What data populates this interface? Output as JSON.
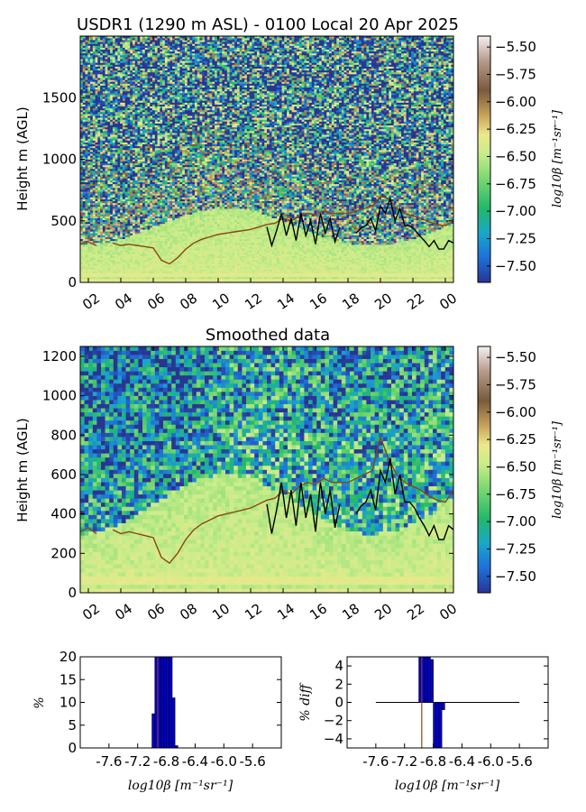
{
  "chart_data": [
    {
      "type": "heatmap",
      "title": "USDR1 (1290 m ASL) - 0100 Local 20 Apr 2025",
      "ylabel": "Height m (AGL)",
      "ylim": [
        0,
        2000
      ],
      "y_ticks": [
        "0",
        "500",
        "1000",
        "1500"
      ],
      "y_tick_values": [
        0,
        500,
        1000,
        1500
      ],
      "x_ticks": [
        "02",
        "04",
        "06",
        "08",
        "10",
        "12",
        "14",
        "16",
        "18",
        "20",
        "22",
        "00"
      ],
      "x_tick_values": [
        2,
        4,
        6,
        8,
        10,
        12,
        14,
        16,
        18,
        20,
        22,
        24
      ],
      "xlim": [
        1.5,
        24.5
      ],
      "colorbar": {
        "label": "log10β [m⁻¹sr⁻¹]",
        "ticks": [
          "−5.50",
          "−5.75",
          "−6.00",
          "−6.25",
          "−6.50",
          "−6.75",
          "−7.00",
          "−7.25",
          "−7.50"
        ],
        "tick_values": [
          -5.5,
          -5.75,
          -6.0,
          -6.25,
          -6.5,
          -6.75,
          -7.0,
          -7.25,
          -7.5
        ],
        "range": [
          -7.65,
          -5.4
        ]
      },
      "lines": [
        {
          "color": "#8b4513",
          "x": [
            1.5,
            2,
            2.5,
            3,
            3.5,
            4,
            4.5,
            5,
            5.5,
            6,
            6.5,
            7,
            7.5,
            8,
            8.5,
            9,
            9.5,
            10,
            10.5,
            11,
            11.5,
            12,
            12.5,
            13,
            13.5,
            14,
            14.5,
            15,
            15.5,
            16,
            16.5,
            17,
            17.5,
            18,
            18.5,
            19,
            19.5,
            20,
            20.5,
            21,
            21.5,
            22,
            22.5,
            23,
            23.5,
            24,
            24.5
          ],
          "y": [
            310,
            330,
            300,
            null,
            320,
            300,
            310,
            300,
            290,
            280,
            180,
            150,
            200,
            270,
            320,
            350,
            370,
            390,
            400,
            410,
            420,
            430,
            450,
            470,
            480,
            520,
            500,
            540,
            560,
            550,
            580,
            560,
            560,
            560,
            580,
            600,
            620,
            700,
            680,
            600,
            560,
            540,
            520,
            490,
            470,
            460,
            500
          ]
        },
        {
          "color": "#000000",
          "x": [
            13,
            13.3,
            13.6,
            13.9,
            14.2,
            14.5,
            14.8,
            15.1,
            15.4,
            15.7,
            16,
            16.3,
            16.6,
            16.9,
            17.2,
            17.5,
            null,
            18.5,
            18.8,
            19.1,
            19.4,
            19.7,
            20,
            20.3,
            20.6,
            20.9,
            21.2,
            21.5,
            21.8,
            22.1,
            22.4,
            22.7,
            23,
            23.3,
            23.6,
            23.9,
            24.2,
            24.5
          ],
          "y": [
            450,
            300,
            420,
            560,
            380,
            520,
            340,
            560,
            380,
            500,
            310,
            560,
            400,
            520,
            330,
            450,
            null,
            400,
            440,
            460,
            520,
            420,
            620,
            560,
            680,
            500,
            600,
            460,
            460,
            430,
            380,
            340,
            290,
            340,
            270,
            270,
            340,
            320
          ]
        }
      ]
    },
    {
      "type": "heatmap",
      "title": "Smoothed data",
      "ylabel": "Height m (AGL)",
      "ylim": [
        0,
        1250
      ],
      "y_ticks": [
        "0",
        "200",
        "400",
        "600",
        "800",
        "1000",
        "1200"
      ],
      "y_tick_values": [
        0,
        200,
        400,
        600,
        800,
        1000,
        1200
      ],
      "x_ticks": [
        "02",
        "04",
        "06",
        "08",
        "10",
        "12",
        "14",
        "16",
        "18",
        "20",
        "22",
        "00"
      ],
      "x_tick_values": [
        2,
        4,
        6,
        8,
        10,
        12,
        14,
        16,
        18,
        20,
        22,
        24
      ],
      "xlim": [
        1.5,
        24.5
      ],
      "colorbar": {
        "label": "log10β [m⁻¹sr⁻¹]",
        "ticks": [
          "−5.50",
          "−5.75",
          "−6.00",
          "−6.25",
          "−6.50",
          "−6.75",
          "−7.00",
          "−7.25",
          "−7.50"
        ],
        "tick_values": [
          -5.5,
          -5.75,
          -6.0,
          -6.25,
          -6.5,
          -6.75,
          -7.0,
          -7.25,
          -7.5
        ],
        "range": [
          -7.65,
          -5.4
        ]
      },
      "lines": [
        {
          "color": "#8b4513",
          "x": [
            1.5,
            2,
            2.5,
            3,
            3.5,
            4,
            4.5,
            5,
            5.5,
            6,
            6.5,
            7,
            7.5,
            8,
            8.5,
            9,
            9.5,
            10,
            10.5,
            11,
            11.5,
            12,
            12.5,
            13,
            13.5,
            14,
            14.5,
            15,
            15.5,
            16,
            16.5,
            17,
            17.5,
            18,
            18.5,
            19,
            19.5,
            20,
            20.5,
            21,
            21.5,
            22,
            22.5,
            23,
            23.5,
            24,
            24.5
          ],
          "y": [
            310,
            330,
            300,
            null,
            320,
            300,
            310,
            300,
            290,
            280,
            180,
            150,
            200,
            270,
            320,
            350,
            370,
            390,
            400,
            410,
            420,
            430,
            450,
            470,
            480,
            520,
            500,
            540,
            560,
            550,
            580,
            560,
            560,
            560,
            580,
            600,
            620,
            790,
            680,
            600,
            560,
            540,
            520,
            490,
            470,
            460,
            520
          ]
        },
        {
          "color": "#000000",
          "x": [
            13,
            13.3,
            13.6,
            13.9,
            14.2,
            14.5,
            14.8,
            15.1,
            15.4,
            15.7,
            16,
            16.3,
            16.6,
            16.9,
            17.2,
            17.5,
            null,
            18.5,
            18.8,
            19.1,
            19.4,
            19.7,
            20,
            20.3,
            20.6,
            20.9,
            21.2,
            21.5,
            21.8,
            22.1,
            22.4,
            22.7,
            23,
            23.3,
            23.6,
            23.9,
            24.2,
            24.5
          ],
          "y": [
            450,
            300,
            420,
            560,
            380,
            520,
            340,
            560,
            380,
            500,
            310,
            560,
            400,
            520,
            330,
            450,
            null,
            400,
            440,
            460,
            520,
            420,
            620,
            560,
            680,
            500,
            600,
            460,
            460,
            430,
            380,
            340,
            290,
            340,
            270,
            270,
            340,
            320
          ]
        }
      ]
    },
    {
      "type": "bar",
      "ylabel": "%",
      "xlabel": "log10β [m⁻¹sr⁻¹]",
      "ylim": [
        0,
        20
      ],
      "xlim": [
        -8.0,
        -5.2
      ],
      "y_ticks": [
        "0",
        "5",
        "10",
        "15",
        "20"
      ],
      "y_tick_values": [
        0,
        5,
        10,
        15,
        20
      ],
      "x_ticks": [
        "-7.6",
        "-7.2",
        "-6.8",
        "-6.4",
        "-6.0",
        "-5.6"
      ],
      "x_tick_values": [
        -7.6,
        -7.2,
        -6.8,
        -6.4,
        -6.0,
        -5.6
      ],
      "bin_width": 0.04,
      "x": [
        -7.0,
        -6.96,
        -6.92,
        -6.88,
        -6.84,
        -6.8,
        -6.76,
        -6.72,
        -6.68
      ],
      "values": [
        7.5,
        20,
        20,
        20,
        20,
        20,
        20,
        11,
        0.5
      ],
      "color": "#0000cd",
      "marker_x": -6.92,
      "marker_color": "#8b4513"
    },
    {
      "type": "bar",
      "ylabel": "% diff",
      "xlabel": "log10β [m⁻¹sr⁻¹]",
      "ylim": [
        -5,
        5
      ],
      "xlim": [
        -8.0,
        -5.2
      ],
      "y_ticks": [
        "−4",
        "−2",
        "0",
        "2",
        "4"
      ],
      "y_tick_values": [
        -4,
        -2,
        0,
        2,
        4
      ],
      "x_ticks": [
        "-7.6",
        "-7.2",
        "-6.8",
        "-6.4",
        "-6.0",
        "-5.6"
      ],
      "x_tick_values": [
        -7.6,
        -7.2,
        -6.8,
        -6.4,
        -6.0,
        -5.6
      ],
      "bin_width": 0.04,
      "x": [
        -7.04,
        -7.0,
        -6.96,
        -6.92,
        -6.88,
        -6.84,
        -6.8,
        -6.76,
        -6.72,
        -6.68,
        -6.64
      ],
      "values": [
        0,
        5,
        5,
        5,
        5,
        4.7,
        -5,
        -5,
        -5,
        -0.8,
        0
      ],
      "color": "#0000cd",
      "baseline_range": [
        -7.6,
        -5.6
      ],
      "marker_x": -6.96,
      "marker_color": "#8b4513"
    }
  ]
}
